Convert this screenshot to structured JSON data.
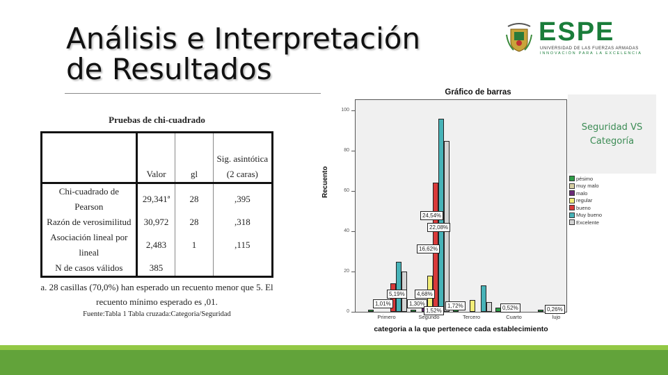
{
  "slide": {
    "title_line1": "Análisis e Interpretación",
    "title_line2": "de Resultados"
  },
  "logo": {
    "name": "ESPE",
    "subtitle1": "UNIVERSIDAD DE LAS FUERZAS ARMADAS",
    "subtitle2": "INNOVACIÓN PARA LA EXCELENCIA"
  },
  "table": {
    "title": "Pruebas de chi-cuadrado",
    "headers": [
      "",
      "Valor",
      "gl",
      "Sig. asintótica (2 caras)"
    ],
    "rows": [
      {
        "label": "Chi-cuadrado de Pearson",
        "valor": "29,341ª",
        "gl": "28",
        "sig": ",395"
      },
      {
        "label": "Razón de verosimilitud",
        "valor": "30,972",
        "gl": "28",
        "sig": ",318"
      },
      {
        "label": "Asociación lineal por lineal",
        "valor": "2,483",
        "gl": "1",
        "sig": ",115"
      },
      {
        "label": "N de casos válidos",
        "valor": "385",
        "gl": "",
        "sig": ""
      }
    ],
    "note": "a.   28 casillas (70,0%) han esperado un recuento menor que 5. El recuento mínimo esperado es ,01.",
    "source": "Fuente:Tabla 1 Tabla cruzada:Categoria/Seguridad"
  },
  "side_box": {
    "text": "Seguridad VS Categoría"
  },
  "chart_data": {
    "type": "bar",
    "title": "Gráfico de barras",
    "xlabel": "categoria a la que pertenece cada establecimiento",
    "ylabel": "Recuento",
    "ylim": [
      0,
      100
    ],
    "yticks": [
      0,
      20,
      40,
      60,
      80,
      100
    ],
    "grid": false,
    "legend_position": "right",
    "categories": [
      "Primero",
      "Segundo",
      "Tercero",
      "Cuarto",
      "lujo"
    ],
    "series": [
      {
        "name": "pésimo",
        "color": "#2e9e48",
        "values": [
          1,
          1,
          2,
          2,
          1
        ]
      },
      {
        "name": "muy malo",
        "color": "#d6cfa3",
        "values": [
          0,
          0,
          0,
          0,
          0
        ]
      },
      {
        "name": "malo",
        "color": "#6b2a78",
        "values": [
          0,
          5,
          0,
          0,
          0
        ]
      },
      {
        "name": "regular",
        "color": "#f2ee78",
        "values": [
          0,
          18,
          6,
          0,
          0
        ]
      },
      {
        "name": "bueno",
        "color": "#d93a3a",
        "values": [
          14,
          64,
          0,
          0,
          0
        ]
      },
      {
        "name": "Muy bueno",
        "color": "#47b3b8",
        "values": [
          25,
          96,
          13,
          0,
          0
        ]
      },
      {
        "name": "Excelente",
        "color": "#d4d4d4",
        "values": [
          20,
          85,
          5,
          0,
          0
        ]
      }
    ],
    "annotations": [
      "1,01%",
      "5,19%",
      "1,30%",
      "4,68%",
      "16,62%",
      "24,54%",
      "22,08%",
      "1,52%",
      "1,72%",
      "0,52%",
      "0,26%"
    ]
  }
}
